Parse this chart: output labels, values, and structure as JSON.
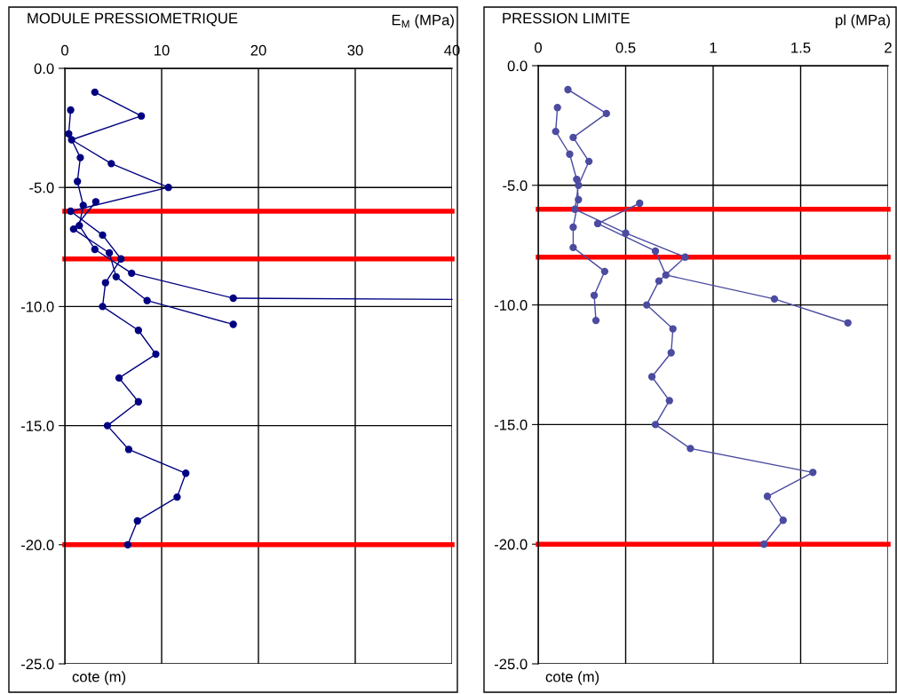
{
  "chart_data": [
    {
      "type": "line",
      "title": "MODULE PRESSIOMETRIQUE",
      "xlabel": "E$_{M}$ (MPa)",
      "annotations": [
        "cote (m)"
      ],
      "xlim": [
        0,
        40
      ],
      "xticks": [
        0,
        10,
        20,
        30,
        40
      ],
      "ylim": [
        -25,
        0
      ],
      "yticks": [
        {
          "value": -25,
          "label": "-25.0"
        },
        {
          "value": -20,
          "label": "-20.0"
        },
        {
          "value": -15,
          "label": "-15.0"
        },
        {
          "value": -10,
          "label": "-10.0"
        },
        {
          "value": -5,
          "label": "-5.0"
        },
        {
          "value": 0,
          "label": "0.0"
        }
      ],
      "grid": true,
      "marker": "circle",
      "line_style": "solid",
      "series": [
        {
          "color": "#000080",
          "x": [
            3.1,
            7.9,
            0.7,
            4.8,
            10.7,
            0.6,
            3.9,
            5.8,
            4.2,
            3.9,
            7.6,
            9.4,
            5.6,
            7.6,
            4.4,
            6.6,
            12.5,
            11.6,
            7.5,
            6.5
          ],
          "values": [
            -1.0,
            -2.0,
            -3.0,
            -4.0,
            -5.0,
            -6.0,
            -7.0,
            -8.0,
            -9.0,
            -10.0,
            -11.0,
            -12.0,
            -13.0,
            -14.0,
            -15.0,
            -16.0,
            -17.0,
            -18.0,
            -19.0,
            -20.0
          ]
        },
        {
          "color": "#000080",
          "x": [
            0.6,
            0.4,
            1.6,
            1.3,
            1.9,
            1.5,
            3.1,
            6.9,
            17.4
          ],
          "values": [
            -1.75,
            -2.75,
            -3.75,
            -4.75,
            -5.75,
            -6.6,
            -7.6,
            -8.6,
            -9.65
          ]
        },
        {
          "color": "#000080",
          "x": [
            3.2,
            0.9,
            4.6,
            5.3,
            8.5,
            17.4
          ],
          "values": [
            -5.6,
            -6.75,
            -7.75,
            -8.75,
            -9.75,
            -10.75
          ]
        },
        {
          "color": "#000080",
          "marker": "none",
          "x": [
            17.4,
            40
          ],
          "values": [
            -9.65,
            -9.7
          ]
        }
      ],
      "ref_lines": [
        {
          "axis": "y",
          "value": -6,
          "color": "#ff0000"
        },
        {
          "axis": "y",
          "value": -8,
          "color": "#ff0000"
        },
        {
          "axis": "y",
          "value": -20,
          "color": "#ff0000"
        }
      ]
    },
    {
      "type": "line",
      "title": "PRESSION LIMITE",
      "xlabel": "pl (MPa)",
      "annotations": [
        "cote (m)"
      ],
      "xlim": [
        0,
        2
      ],
      "xticks": [
        0,
        0.5,
        1,
        1.5,
        2
      ],
      "ylim": [
        -25,
        0
      ],
      "yticks": [
        {
          "value": -25,
          "label": "-25.0"
        },
        {
          "value": -20,
          "label": "-20.0"
        },
        {
          "value": -15,
          "label": "-15.0"
        },
        {
          "value": -10,
          "label": "-10.0"
        },
        {
          "value": -5,
          "label": "-5.0"
        },
        {
          "value": 0,
          "label": "0.0"
        }
      ],
      "grid": true,
      "marker": "circle",
      "line_style": "solid",
      "series": [
        {
          "color": "#4b4ba0",
          "x": [
            0.17,
            0.39,
            0.2,
            0.29,
            0.23,
            0.21,
            0.5,
            0.84,
            0.69,
            0.62,
            0.77,
            0.76,
            0.65,
            0.75,
            0.67,
            0.87,
            1.57,
            1.31,
            1.4,
            1.29
          ],
          "values": [
            -1.0,
            -2.0,
            -3.0,
            -4.0,
            -5.0,
            -6.0,
            -7.0,
            -8.0,
            -9.0,
            -10.0,
            -11.0,
            -12.0,
            -13.0,
            -14.0,
            -15.0,
            -16.0,
            -17.0,
            -18.0,
            -19.0,
            -20.0
          ]
        },
        {
          "color": "#4b4ba0",
          "x": [
            0.11,
            0.1,
            0.18,
            0.22,
            0.23,
            0.2,
            0.2,
            0.38,
            0.32,
            0.33
          ],
          "values": [
            -1.75,
            -2.75,
            -3.7,
            -4.75,
            -5.6,
            -6.75,
            -7.6,
            -8.6,
            -9.6,
            -10.65
          ]
        },
        {
          "color": "#4b4ba0",
          "x": [
            0.58,
            0.34,
            0.67,
            0.73,
            1.35,
            1.77
          ],
          "values": [
            -5.75,
            -6.6,
            -7.75,
            -8.75,
            -9.75,
            -10.75
          ]
        }
      ],
      "ref_lines": [
        {
          "axis": "y",
          "value": -6,
          "color": "#ff0000"
        },
        {
          "axis": "y",
          "value": -8,
          "color": "#ff0000"
        },
        {
          "axis": "y",
          "value": -20,
          "color": "#ff0000"
        }
      ]
    }
  ]
}
